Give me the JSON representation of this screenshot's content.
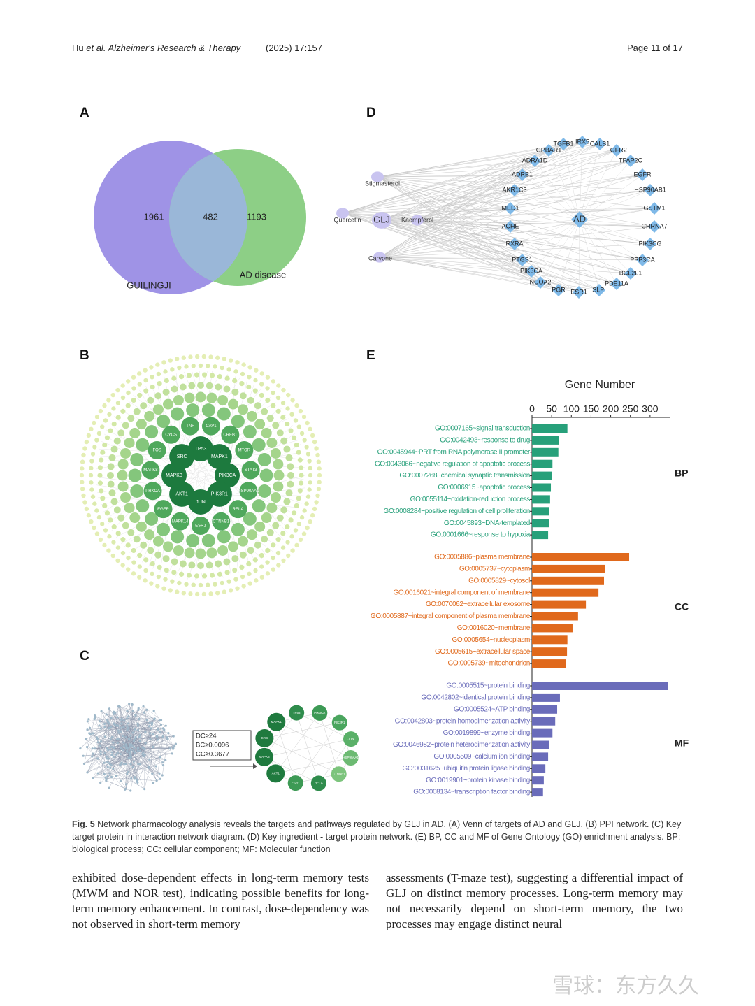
{
  "header": {
    "author": "Hu",
    "journal": "et al. Alzheimer's Research & Therapy",
    "issue": "(2025) 17:157",
    "page": "Page 11 of 17"
  },
  "panels": {
    "a": "A",
    "b": "B",
    "c": "C",
    "d": "D",
    "e": "E"
  },
  "venn": {
    "left_label": "GUILINGJI",
    "right_label": "AD disease",
    "left_only": "1961",
    "both": "482",
    "right_only": "1193"
  },
  "network_d": {
    "ingredients": [
      "Stigmasterol",
      "Quercetin",
      "GLJ",
      "Kaempferol",
      "Carvone"
    ],
    "disease": "AD",
    "targets": [
      "TGFB1",
      "IRX5",
      "CALB1",
      "GPBAR1",
      "FGFR2",
      "ADRA1D",
      "TFAP2C",
      "ADRB1",
      "EGFR",
      "AKR1C3",
      "HSP90AB1",
      "MED1",
      "GSTM1",
      "ACHE",
      "CHRNA7",
      "RXRA",
      "PIK3CG",
      "PTGS1",
      "PPP3CA",
      "PIK3CA",
      "BCL2L1",
      "NCOA2",
      "PDE11A",
      "PGR",
      "ESR1",
      "SLPI"
    ]
  },
  "network_b": {
    "core": [
      "TP53",
      "MAPK1",
      "PIK3CA",
      "PIK3R1",
      "JUN",
      "AKT1",
      "MAPK3",
      "SRC"
    ],
    "ring": [
      "CAV1",
      "CREB1",
      "MTOR",
      "STAT3",
      "HSP90AA1",
      "RELA",
      "CTNNB1",
      "ESR1",
      "MAPK14",
      "EGFR",
      "PRKCA",
      "MAPK8",
      "FOS",
      "CYCS",
      "TNF"
    ]
  },
  "network_c": {
    "filter": [
      "DC≥24",
      "BC≥0.0096",
      "CC≥0.3677"
    ],
    "nodes": [
      "TP53",
      "PIK3CA",
      "PIK3R1",
      "JUN",
      "HSP90AA1",
      "CTNNB1",
      "RELA",
      "ESR1",
      "AKT1",
      "MAPK3",
      "SRC",
      "MAPK1"
    ]
  },
  "panel_e": {
    "type": "bar",
    "title": "Gene Number",
    "xlim": [
      0,
      350
    ],
    "xticks": [
      0,
      50,
      100,
      150,
      200,
      250,
      300
    ],
    "groups": [
      {
        "name": "BP",
        "color": "#27a07a",
        "categories": [
          "GO:0007165~signal transduction",
          "GO:0042493~response to drug",
          "GO:0045944~PRT from RNA polymerase II promoter",
          "GO:0043066~negative regulation of apoptotic process",
          "GO:0007268~chemical synaptic transmission",
          "GO:0006915~apoptotic process",
          "GO:0055114~oxidation-reduction process",
          "GO:0008284~positive regulation of cell proliferation",
          "GO:0045893~DNA-templated",
          "GO:0001666~response to hypoxia"
        ],
        "values": [
          90,
          69,
          67,
          52,
          51,
          48,
          46,
          44,
          43,
          41
        ]
      },
      {
        "name": "CC",
        "color": "#e0691c",
        "categories": [
          "GO:0005886~plasma membrane",
          "GO:0005737~cytoplasm",
          "GO:0005829~cytosol",
          "GO:0016021~integral component of membrane",
          "GO:0070062~extracellular exosome",
          "GO:0005887~integral component of plasma membrane",
          "GO:0016020~membrane",
          "GO:0005654~nucleoplasm",
          "GO:0005615~extracellular space",
          "GO:0005739~mitochondrion"
        ],
        "values": [
          247,
          185,
          183,
          169,
          137,
          117,
          103,
          90,
          89,
          87
        ]
      },
      {
        "name": "MF",
        "color": "#6a6cba",
        "categories": [
          "GO:0005515~protein binding",
          "GO:0042802~identical protein binding",
          "GO:0005524~ATP binding",
          "GO:0042803~protein homodimerization activity",
          "GO:0019899~enzyme binding",
          "GO:0046982~protein heterodimerization activity",
          "GO:0005509~calcium ion binding",
          "GO:0031625~ubiquitin protein ligase binding",
          "GO:0019901~protein kinase binding",
          "GO:0008134~transcription factor binding"
        ],
        "values": [
          346,
          71,
          64,
          59,
          52,
          44,
          41,
          34,
          30,
          28
        ]
      }
    ]
  },
  "caption": {
    "label": "Fig. 5",
    "text": "Network pharmacology analysis reveals the targets and pathways regulated by GLJ in AD. (A) Venn of targets of AD and GLJ. (B) PPI network. (C) Key target protein in interaction network diagram. (D) Key ingredient - target protein network. (E) BP, CC and MF of Gene Ontology (GO) enrichment analysis. BP: biological process; CC: cellular component; MF: Molecular function"
  },
  "body": {
    "left": "exhibited dose-dependent effects in long-term memory tests (MWM and NOR test), indicating possible benefits for long-term memory enhancement. In contrast, dose-dependency was not observed in short-term memory",
    "right": "assessments (T-maze test), suggesting a differential impact of GLJ on distinct memory processes. Long-term memory may not necessarily depend on short-term memory, the two processes may engage distinct neural"
  },
  "watermark": "雪球：东方久久"
}
